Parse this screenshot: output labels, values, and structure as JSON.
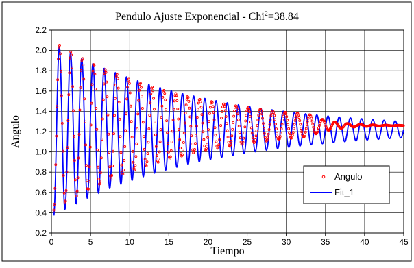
{
  "chart_data": {
    "type": "scatter",
    "title": "Pendulo Ajuste Exponencial - Chi",
    "title_superscript": "2",
    "title_suffix": "=38.84",
    "xlabel": "Tiempo",
    "ylabel": "Angulo",
    "xlim": [
      0,
      45
    ],
    "ylim": [
      0.2,
      2.2
    ],
    "x_ticks": [
      "0",
      "5",
      "10",
      "15",
      "20",
      "25",
      "30",
      "35",
      "40",
      "45"
    ],
    "y_ticks": [
      "0.2",
      "0.4",
      "0.6",
      "0.8",
      "1.0",
      "1.2",
      "1.4",
      "1.6",
      "1.8",
      "2.0",
      "2.2"
    ],
    "grid": true,
    "legend_position": "bottom-right",
    "colors": {
      "data": "#ff0000",
      "fit": "#0000ff",
      "grid": "#000000"
    },
    "series": [
      {
        "name": "Angulo",
        "style": "markers",
        "model": "damped_oscillation_with_drift",
        "offset": 1.26,
        "amplitude_start": 0.85,
        "decay_time": 16,
        "period": 1.45,
        "samples_per_second": 12,
        "x_range": [
          0.3,
          45
        ]
      },
      {
        "name": "Fit_1",
        "style": "line",
        "model": "damped_oscillation",
        "offset": 1.22,
        "amplitude_start": 0.86,
        "decay_time": 19,
        "period": 1.43,
        "x_range": [
          0.3,
          45
        ]
      }
    ]
  }
}
